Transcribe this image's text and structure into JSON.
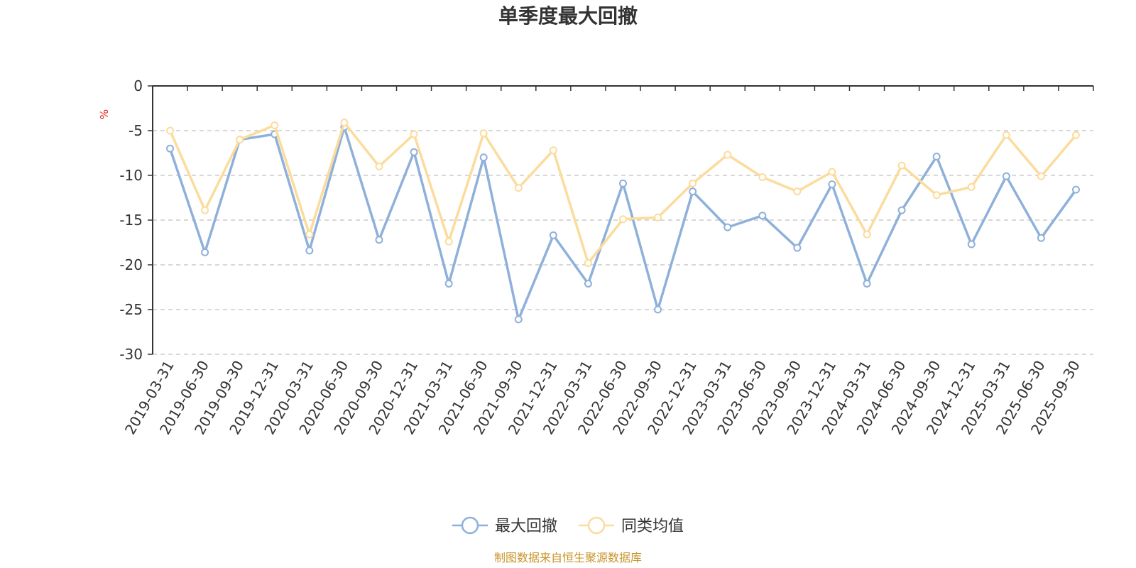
{
  "chart_data": {
    "type": "line",
    "title": "单季度最大回撤",
    "ylabel": "%",
    "ylim": [
      -30,
      0
    ],
    "yticks": [
      0,
      -5,
      -10,
      -15,
      -20,
      -25,
      -30
    ],
    "grid": true,
    "legend_position": "bottom",
    "categories": [
      "2019-03-31",
      "2019-06-30",
      "2019-09-30",
      "2019-12-31",
      "2020-03-31",
      "2020-06-30",
      "2020-09-30",
      "2020-12-31",
      "2021-03-31",
      "2021-06-30",
      "2021-09-30",
      "2021-12-31",
      "2022-03-31",
      "2022-06-30",
      "2022-09-30",
      "2022-12-31",
      "2023-03-31",
      "2023-06-30",
      "2023-09-30",
      "2023-12-31",
      "2024-03-31",
      "2024-06-30",
      "2024-09-30",
      "2024-12-31",
      "2025-03-31",
      "2025-06-30",
      "2025-09-30"
    ],
    "series": [
      {
        "name": "最大回撤",
        "color": "#8eb0da",
        "values": [
          -7.0,
          -18.6,
          -6.0,
          -5.4,
          -18.4,
          -4.6,
          -17.2,
          -7.4,
          -22.1,
          -8.0,
          -26.1,
          -16.7,
          -22.1,
          -10.9,
          -25.0,
          -11.8,
          -15.8,
          -14.5,
          -18.1,
          -11.0,
          -22.1,
          -13.9,
          -7.9,
          -17.7,
          -10.1,
          -17.0,
          -11.6
        ]
      },
      {
        "name": "同类均值",
        "color": "#fbdc9c",
        "values": [
          -5.0,
          -13.9,
          -6.0,
          -4.4,
          -16.6,
          -4.1,
          -9.0,
          -5.4,
          -17.4,
          -5.3,
          -11.4,
          -7.2,
          -19.8,
          -14.9,
          -14.7,
          -10.9,
          -7.7,
          -10.2,
          -11.8,
          -9.6,
          -16.6,
          -8.9,
          -12.2,
          -11.3,
          -5.5,
          -10.1,
          -5.5
        ]
      }
    ]
  },
  "source": "制图数据来自恒生聚源数据库"
}
